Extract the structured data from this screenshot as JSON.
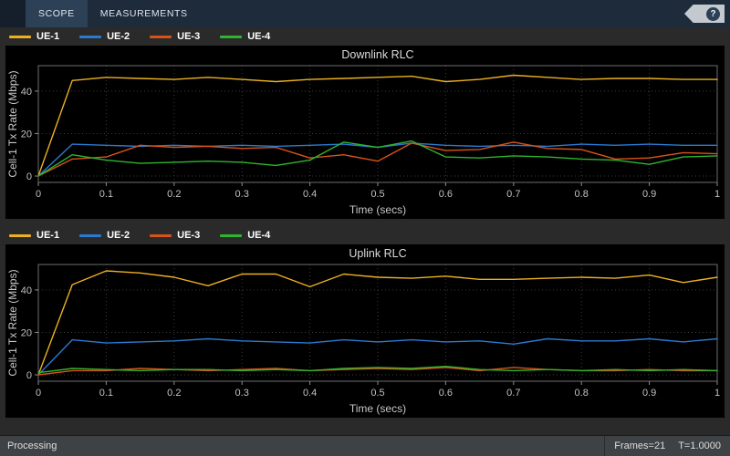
{
  "toolbar": {
    "tabs": [
      {
        "label": "SCOPE"
      },
      {
        "label": "MEASUREMENTS"
      }
    ],
    "help_label": "?"
  },
  "legend": {
    "items": [
      {
        "label": "UE-1",
        "color": "#edb120"
      },
      {
        "label": "UE-2",
        "color": "#2a7ad2"
      },
      {
        "label": "UE-3",
        "color": "#d95319"
      },
      {
        "label": "UE-4",
        "color": "#2eb52e"
      }
    ]
  },
  "status_bar": {
    "left": "Processing",
    "frames": "Frames=21",
    "time": "T=1.0000"
  },
  "chart_data": [
    {
      "type": "line",
      "title": "Downlink RLC",
      "xlabel": "Time (secs)",
      "ylabel": "Cell-1 Tx Rate (Mbps)",
      "xlim": [
        0,
        1
      ],
      "ylim": [
        -3,
        52
      ],
      "xticks": [
        0,
        0.1,
        0.2,
        0.3,
        0.4,
        0.5,
        0.6,
        0.7,
        0.8,
        0.9,
        1
      ],
      "yticks": [
        0,
        20,
        40
      ],
      "grid": true,
      "legend_position": "top-left",
      "x": [
        0,
        0.05,
        0.1,
        0.15,
        0.2,
        0.25,
        0.3,
        0.35,
        0.4,
        0.45,
        0.5,
        0.55,
        0.6,
        0.65,
        0.7,
        0.75,
        0.8,
        0.85,
        0.9,
        0.95,
        1
      ],
      "series": [
        {
          "name": "UE-1",
          "color": "#edb120",
          "values": [
            0,
            45,
            46.5,
            46,
            45.5,
            46.5,
            45.5,
            44.5,
            45.5,
            46,
            46.5,
            47,
            44.5,
            45.5,
            47.5,
            46.5,
            45.5,
            46,
            46,
            45.5,
            45.5
          ]
        },
        {
          "name": "UE-2",
          "color": "#2a7ad2",
          "values": [
            0,
            15,
            14.5,
            14,
            14.5,
            14,
            14.5,
            14,
            14.5,
            15,
            13.5,
            15.5,
            14.5,
            14,
            14.5,
            14,
            15,
            14.5,
            15,
            14.5,
            14.5
          ]
        },
        {
          "name": "UE-3",
          "color": "#d95319",
          "values": [
            0,
            8,
            9,
            14.5,
            13.5,
            14,
            13,
            13.5,
            8.5,
            10,
            7,
            15.5,
            12,
            12.5,
            16,
            13,
            12.5,
            8,
            8.5,
            11,
            10.5
          ]
        },
        {
          "name": "UE-4",
          "color": "#2eb52e",
          "values": [
            0,
            10,
            7.5,
            6,
            6.5,
            7,
            6.5,
            5,
            7.5,
            16,
            13.5,
            16.5,
            9,
            8.5,
            9.5,
            9,
            8,
            7.5,
            5.5,
            9,
            9.5
          ]
        }
      ]
    },
    {
      "type": "line",
      "title": "Uplink RLC",
      "xlabel": "Time (secs)",
      "ylabel": "Cell-1 Tx Rate (Mbps)",
      "xlim": [
        0,
        1
      ],
      "ylim": [
        -3,
        52
      ],
      "xticks": [
        0,
        0.1,
        0.2,
        0.3,
        0.4,
        0.5,
        0.6,
        0.7,
        0.8,
        0.9,
        1
      ],
      "yticks": [
        0,
        20,
        40
      ],
      "grid": true,
      "legend_position": "top-left",
      "x": [
        0,
        0.05,
        0.1,
        0.15,
        0.2,
        0.25,
        0.3,
        0.35,
        0.4,
        0.45,
        0.5,
        0.55,
        0.6,
        0.65,
        0.7,
        0.75,
        0.8,
        0.85,
        0.9,
        0.95,
        1
      ],
      "series": [
        {
          "name": "UE-1",
          "color": "#edb120",
          "values": [
            0,
            42.5,
            49,
            48,
            46,
            42,
            47.5,
            47.5,
            41.5,
            47.5,
            46,
            45.5,
            46.5,
            45,
            45,
            45.5,
            46,
            45.5,
            47,
            43.5,
            46
          ]
        },
        {
          "name": "UE-2",
          "color": "#2a7ad2",
          "values": [
            0,
            16.5,
            15,
            15.5,
            16,
            17,
            16,
            15.5,
            15,
            16.5,
            15.5,
            16.5,
            15.5,
            16,
            14.5,
            17,
            16,
            16,
            17,
            15.5,
            17
          ]
        },
        {
          "name": "UE-3",
          "color": "#d95319",
          "values": [
            0,
            2,
            2,
            3,
            2.5,
            2,
            2.5,
            3,
            2,
            2.5,
            3,
            2.5,
            3.5,
            2,
            3.5,
            2.5,
            2,
            2,
            2.5,
            2,
            2
          ]
        },
        {
          "name": "UE-4",
          "color": "#2eb52e",
          "values": [
            1,
            3,
            2.5,
            2,
            2.5,
            2.5,
            2,
            2.5,
            2,
            3,
            3.5,
            3,
            4,
            2.5,
            2,
            2.5,
            2,
            2.5,
            2,
            2.5,
            2
          ]
        }
      ]
    }
  ]
}
